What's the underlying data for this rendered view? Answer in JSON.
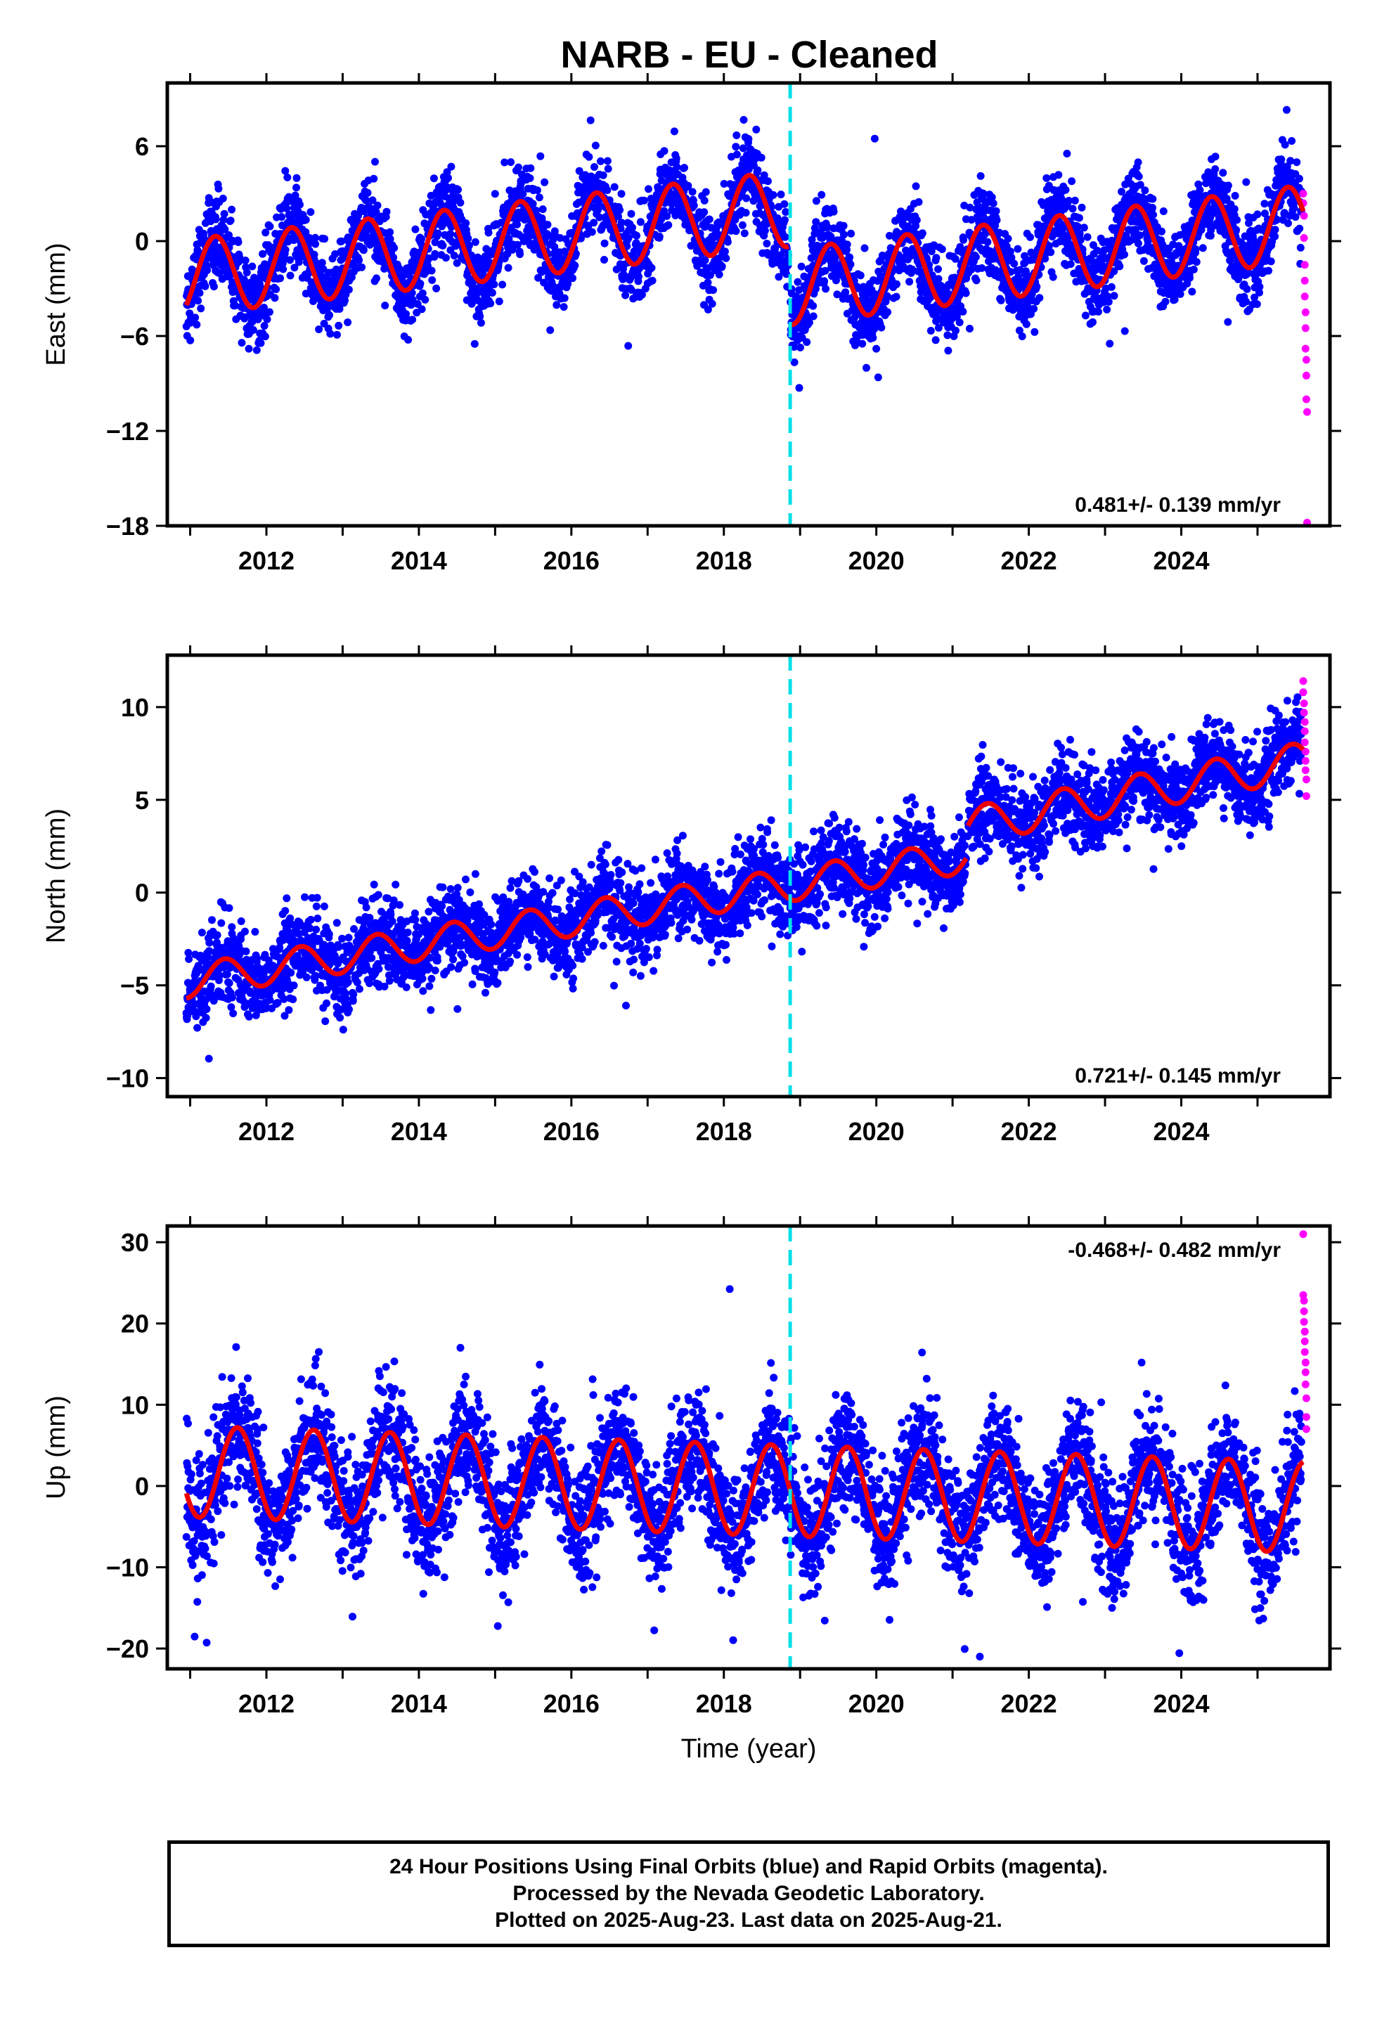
{
  "title": "NARB  - EU - Cleaned",
  "colors": {
    "final": "#0000ff",
    "rapid": "#ff00ff",
    "model": "#ee0000",
    "event": "#00e0e8"
  },
  "chart_data": [
    {
      "type": "scatter",
      "component": "east",
      "ylabel": "East (mm)",
      "ylim": [
        -18,
        10
      ],
      "yticks": [
        6,
        0,
        -6,
        -12,
        -18
      ],
      "xlim": [
        2010.7,
        2025.95
      ],
      "xticks": [
        2012,
        2014,
        2016,
        2018,
        2020,
        2022,
        2024
      ],
      "event_line_x": 2018.87,
      "rate_label": "0.481+/- 0.139 mm/yr",
      "rate_label_position": "bottom-right",
      "model_segments": [
        {
          "x_start": 2010.95,
          "x_end": 2018.85,
          "offset": -2.3,
          "rate": 0.55,
          "amplitude": 2.4,
          "phase_peak": 0.33
        },
        {
          "x_start": 2018.87,
          "x_end": 2025.6,
          "offset": -2.9,
          "rate": 0.6,
          "amplitude": 2.4,
          "phase_peak": 0.4
        }
      ],
      "final_scatter": {
        "x_start": 2010.95,
        "x_end": 2025.58,
        "noise_mm": 1.3,
        "count": 4200
      },
      "rapid_points": [
        {
          "x": 2025.6,
          "y": 3.0
        },
        {
          "x": 2025.6,
          "y": 2.4
        },
        {
          "x": 2025.61,
          "y": 1.6
        },
        {
          "x": 2025.61,
          "y": 0.2
        },
        {
          "x": 2025.62,
          "y": -1.5
        },
        {
          "x": 2025.62,
          "y": -2.5
        },
        {
          "x": 2025.62,
          "y": -3.5
        },
        {
          "x": 2025.63,
          "y": -4.5
        },
        {
          "x": 2025.63,
          "y": -5.5
        },
        {
          "x": 2025.63,
          "y": -6.8
        },
        {
          "x": 2025.64,
          "y": -7.5
        },
        {
          "x": 2025.64,
          "y": -8.5
        },
        {
          "x": 2025.64,
          "y": -10.0
        },
        {
          "x": 2025.65,
          "y": -10.8
        },
        {
          "x": 2025.65,
          "y": -17.8
        }
      ]
    },
    {
      "type": "scatter",
      "component": "north",
      "ylabel": "North (mm)",
      "ylim": [
        -11,
        12.8
      ],
      "yticks": [
        10,
        5,
        0,
        -5,
        -10
      ],
      "xlim": [
        2010.7,
        2025.95
      ],
      "xticks": [
        2012,
        2014,
        2016,
        2018,
        2020,
        2022,
        2024
      ],
      "event_line_x": 2018.87,
      "rate_label": "0.721+/- 0.145 mm/yr",
      "rate_label_position": "bottom-right",
      "model_segments": [
        {
          "x_start": 2010.95,
          "x_end": 2021.18,
          "offset": -4.8,
          "rate": 0.66,
          "amplitude": 0.9,
          "phase_peak": 0.45
        },
        {
          "x_start": 2021.2,
          "x_end": 2025.6,
          "offset": 3.6,
          "rate": 0.8,
          "amplitude": 1.0,
          "phase_peak": 0.45
        }
      ],
      "final_scatter": {
        "x_start": 2010.95,
        "x_end": 2025.58,
        "noise_mm": 1.1,
        "count": 4200
      },
      "rapid_points": [
        {
          "x": 2025.6,
          "y": 11.4
        },
        {
          "x": 2025.6,
          "y": 10.8
        },
        {
          "x": 2025.61,
          "y": 10.2
        },
        {
          "x": 2025.61,
          "y": 9.7
        },
        {
          "x": 2025.62,
          "y": 9.2
        },
        {
          "x": 2025.62,
          "y": 8.7
        },
        {
          "x": 2025.62,
          "y": 8.1
        },
        {
          "x": 2025.63,
          "y": 7.6
        },
        {
          "x": 2025.63,
          "y": 7.1
        },
        {
          "x": 2025.63,
          "y": 6.6
        },
        {
          "x": 2025.64,
          "y": 6.1
        },
        {
          "x": 2025.64,
          "y": 5.2
        }
      ]
    },
    {
      "type": "scatter",
      "component": "up",
      "ylabel": "Up (mm)",
      "xlabel": "Time (year)",
      "ylim": [
        -22.5,
        32
      ],
      "yticks": [
        30,
        20,
        10,
        0,
        -10,
        -20
      ],
      "xlim": [
        2010.7,
        2025.95
      ],
      "xticks": [
        2012,
        2014,
        2016,
        2018,
        2020,
        2022,
        2024
      ],
      "event_line_x": 2018.87,
      "rate_label": "-0.468+/- 0.482 mm/yr",
      "rate_label_position": "top-right",
      "model_segments": [
        {
          "x_start": 2010.95,
          "x_end": 2025.6,
          "offset": 1.8,
          "rate": -0.3,
          "amplitude": 5.6,
          "phase_peak": 0.62
        }
      ],
      "final_scatter": {
        "x_start": 2010.95,
        "x_end": 2025.58,
        "noise_mm": 3.6,
        "count": 4200
      },
      "rapid_points": [
        {
          "x": 2025.6,
          "y": 31.0
        },
        {
          "x": 2025.6,
          "y": 23.5
        },
        {
          "x": 2025.61,
          "y": 22.8
        },
        {
          "x": 2025.61,
          "y": 21.5
        },
        {
          "x": 2025.61,
          "y": 20.2
        },
        {
          "x": 2025.62,
          "y": 19.0
        },
        {
          "x": 2025.62,
          "y": 17.8
        },
        {
          "x": 2025.62,
          "y": 16.5
        },
        {
          "x": 2025.63,
          "y": 15.2
        },
        {
          "x": 2025.63,
          "y": 14.0
        },
        {
          "x": 2025.63,
          "y": 12.5
        },
        {
          "x": 2025.64,
          "y": 10.8
        },
        {
          "x": 2025.64,
          "y": 8.5
        },
        {
          "x": 2025.64,
          "y": 7.0
        }
      ]
    }
  ],
  "footer": {
    "line1": "24 Hour Positions Using Final Orbits (blue) and Rapid Orbits (magenta).",
    "line2": "Processed by the Nevada Geodetic Laboratory.",
    "line3": "Plotted on 2025-Aug-23. Last data on 2025-Aug-21."
  }
}
